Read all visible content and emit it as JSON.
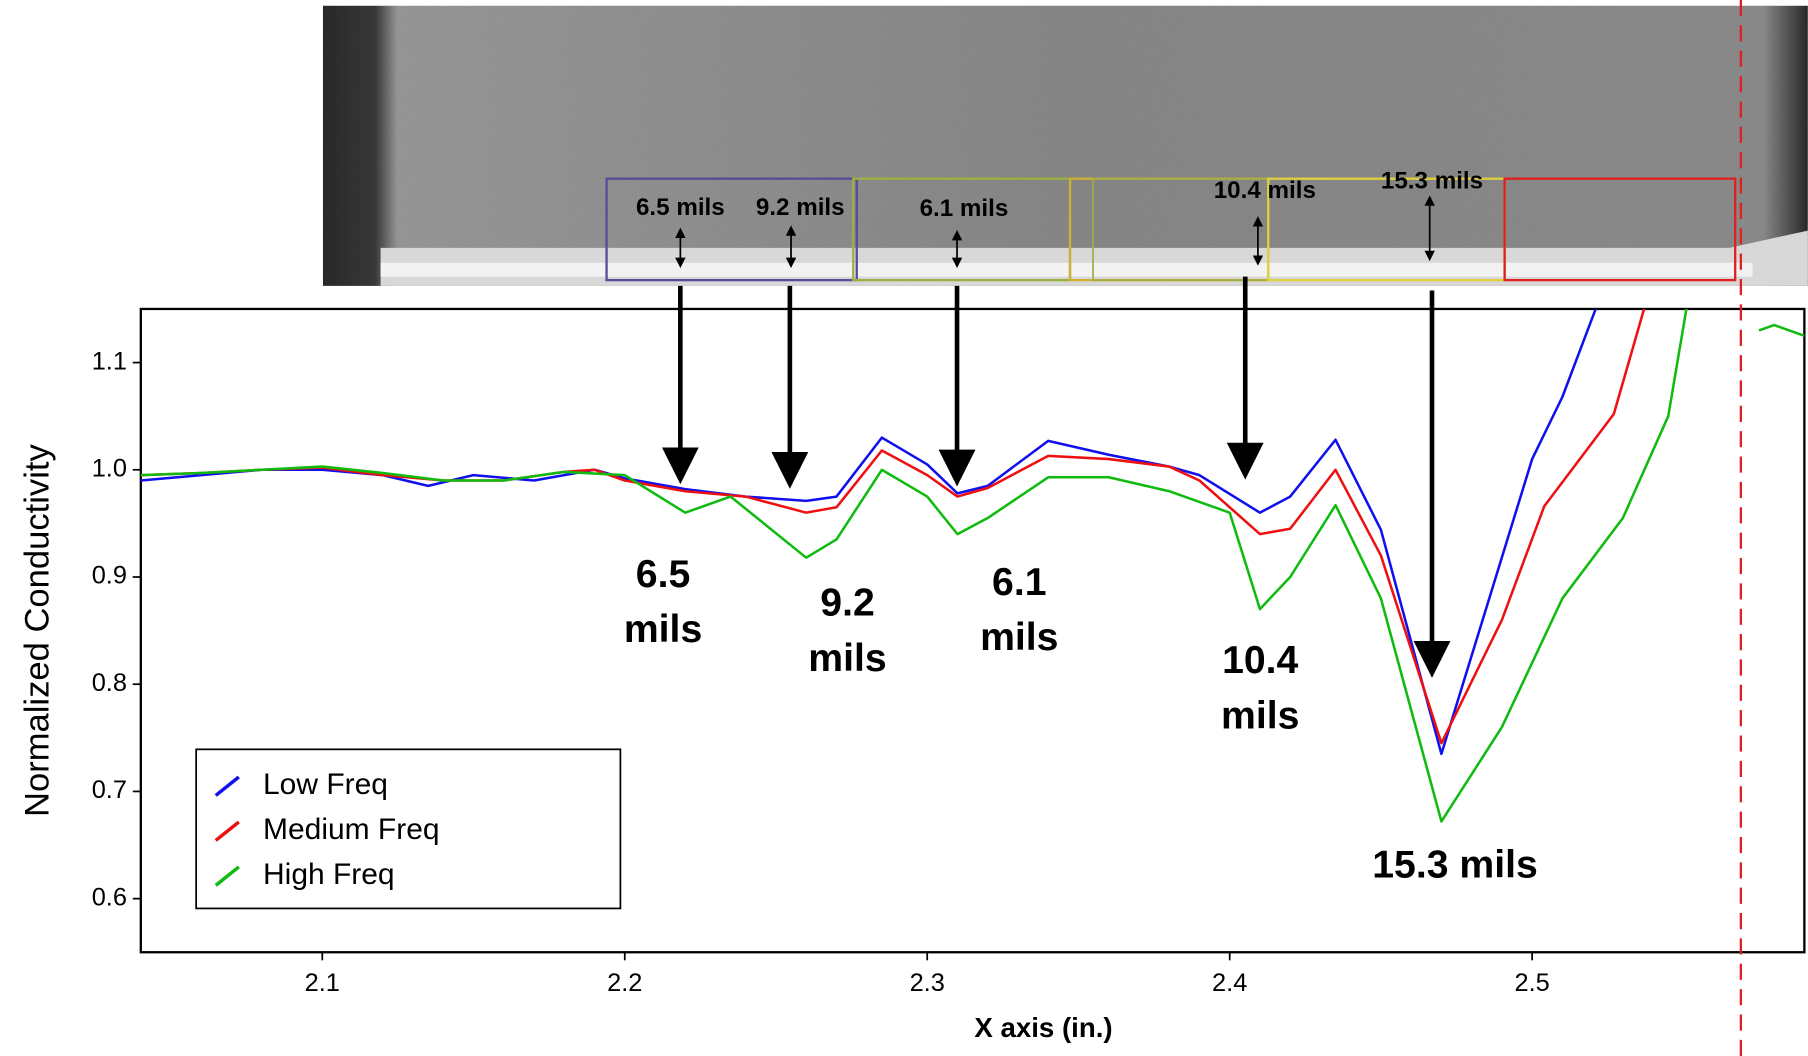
{
  "chart_data": {
    "type": "line",
    "xlabel": "X axis (in.)",
    "ylabel": "Normalized Conductivity",
    "xlim": [
      2.04,
      2.59
    ],
    "ylim": [
      0.55,
      1.15
    ],
    "xticks": [
      2.1,
      2.2,
      2.3,
      2.4,
      2.5
    ],
    "yticks": [
      0.6,
      0.7,
      0.8,
      0.9,
      {
        "value": 1.0,
        "label": "1.0"
      },
      1.1
    ],
    "legend": "lower-left",
    "vline": {
      "x": 2.569,
      "color": "#e02020"
    },
    "series": [
      {
        "name": "Low Freq",
        "color": "#1010ee",
        "x": [
          2.04,
          2.06,
          2.08,
          2.1,
          2.12,
          2.135,
          2.15,
          2.17,
          2.19,
          2.2,
          2.22,
          2.24,
          2.26,
          2.27,
          2.285,
          2.3,
          2.31,
          2.32,
          2.34,
          2.36,
          2.38,
          2.39,
          2.41,
          2.42,
          2.435,
          2.45,
          2.47,
          2.488,
          2.5,
          2.51,
          2.521
        ],
        "values": [
          0.99,
          0.995,
          1.0,
          1.0,
          0.995,
          0.985,
          0.995,
          0.99,
          1.0,
          0.992,
          0.982,
          0.975,
          0.971,
          0.975,
          1.03,
          1.005,
          0.978,
          0.985,
          1.027,
          1.014,
          1.003,
          0.995,
          0.96,
          0.975,
          1.028,
          0.944,
          0.735,
          0.9,
          1.01,
          1.068,
          1.15
        ]
      },
      {
        "name": "Medium Freq",
        "color": "#ee1010",
        "x": [
          2.04,
          2.06,
          2.08,
          2.1,
          2.12,
          2.14,
          2.16,
          2.18,
          2.19,
          2.2,
          2.22,
          2.24,
          2.26,
          2.27,
          2.285,
          2.3,
          2.31,
          2.32,
          2.34,
          2.36,
          2.38,
          2.39,
          2.41,
          2.42,
          2.435,
          2.45,
          2.47,
          2.49,
          2.504,
          2.527,
          2.537
        ],
        "values": [
          0.995,
          0.997,
          1.0,
          1.002,
          0.995,
          0.99,
          0.99,
          0.998,
          1.0,
          0.99,
          0.98,
          0.975,
          0.96,
          0.965,
          1.018,
          0.995,
          0.975,
          0.983,
          1.013,
          1.01,
          1.003,
          0.99,
          0.94,
          0.945,
          1.0,
          0.92,
          0.745,
          0.86,
          0.966,
          1.052,
          1.15
        ]
      },
      {
        "name": "High Freq",
        "color": "#10bb10",
        "x": [
          2.04,
          2.06,
          2.08,
          2.1,
          2.12,
          2.14,
          2.16,
          2.18,
          2.2,
          2.22,
          2.235,
          2.26,
          2.27,
          2.285,
          2.3,
          2.31,
          2.32,
          2.34,
          2.36,
          2.38,
          2.4,
          2.41,
          2.42,
          2.435,
          2.45,
          2.47,
          2.49,
          2.51,
          2.53,
          2.545,
          2.551,
          2.56,
          2.575,
          2.58,
          2.59
        ],
        "values": [
          0.995,
          0.997,
          1.0,
          1.003,
          0.997,
          0.99,
          0.99,
          0.998,
          0.995,
          0.96,
          0.975,
          0.918,
          0.935,
          1.0,
          0.975,
          0.94,
          0.955,
          0.993,
          0.993,
          0.98,
          0.96,
          0.87,
          0.9,
          0.967,
          0.88,
          0.672,
          0.76,
          0.88,
          0.955,
          1.05,
          1.15,
          null,
          1.13,
          1.135,
          1.125
        ]
      }
    ],
    "annotations": [
      {
        "lines": [
          "6.5",
          "mils"
        ]
      },
      {
        "lines": [
          "9.2",
          "mils"
        ]
      },
      {
        "lines": [
          "6.1",
          "mils"
        ]
      },
      {
        "lines": [
          "10.4",
          "mils"
        ]
      },
      {
        "lines": [
          "15.3 mils"
        ]
      }
    ],
    "image_labels": [
      "6.5 mils",
      "9.2 mils",
      "6.1 mils",
      "10.4 mils",
      "15.3 mils"
    ]
  }
}
